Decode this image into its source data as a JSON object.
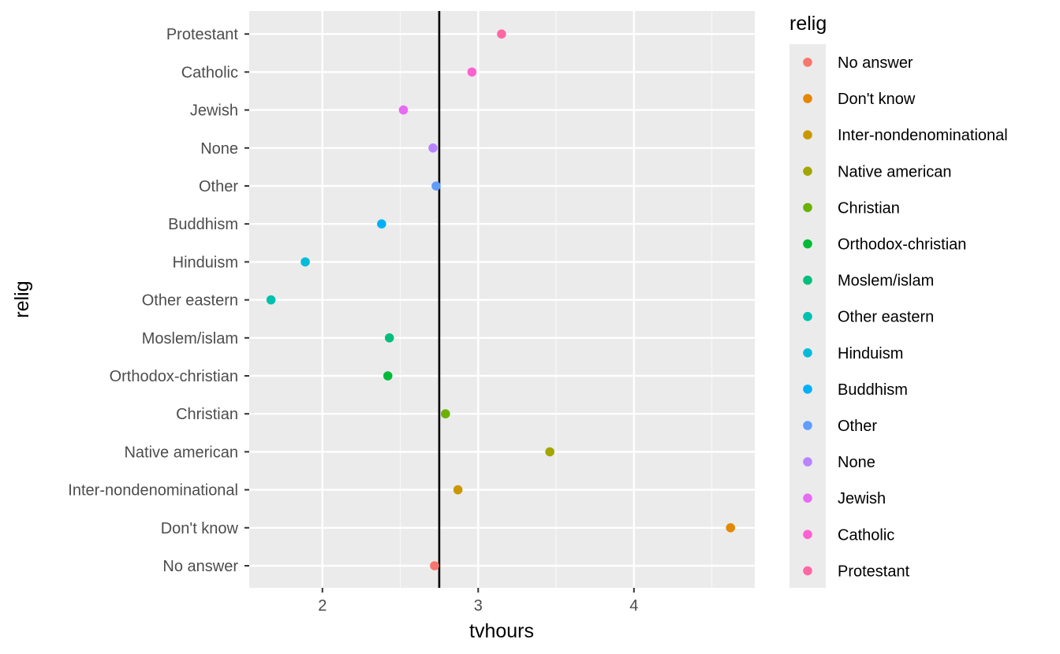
{
  "chart_data": {
    "type": "scatter",
    "xlabel": "tvhours",
    "ylabel": "relig",
    "xlim": [
      1.53,
      4.78
    ],
    "x_ticks": [
      2,
      3,
      4
    ],
    "x_tick_labels": [
      "2",
      "3",
      "4"
    ],
    "categories": [
      "No answer",
      "Don't know",
      "Inter-nondenominational",
      "Native american",
      "Christian",
      "Orthodox-christian",
      "Moslem/islam",
      "Other eastern",
      "Hinduism",
      "Buddhism",
      "Other",
      "None",
      "Jewish",
      "Catholic",
      "Protestant"
    ],
    "values": [
      2.72,
      4.62,
      2.87,
      3.46,
      2.79,
      2.42,
      2.43,
      1.67,
      1.89,
      2.38,
      2.73,
      2.71,
      2.52,
      2.96,
      3.15
    ],
    "colors": [
      "#F8766D",
      "#E58700",
      "#C99800",
      "#A3A500",
      "#6BB100",
      "#00BA38",
      "#00BF7D",
      "#00C0AF",
      "#00BCD8",
      "#00B0F6",
      "#619CFF",
      "#B983FF",
      "#E76BF3",
      "#FD61D1",
      "#FF67A4"
    ],
    "vline": 2.75,
    "grid": true,
    "legend": {
      "title": "relig",
      "position": "right",
      "entries": [
        "No answer",
        "Don't know",
        "Inter-nondenominational",
        "Native american",
        "Christian",
        "Orthodox-christian",
        "Moslem/islam",
        "Other eastern",
        "Hinduism",
        "Buddhism",
        "Other",
        "None",
        "Jewish",
        "Catholic",
        "Protestant"
      ]
    }
  }
}
